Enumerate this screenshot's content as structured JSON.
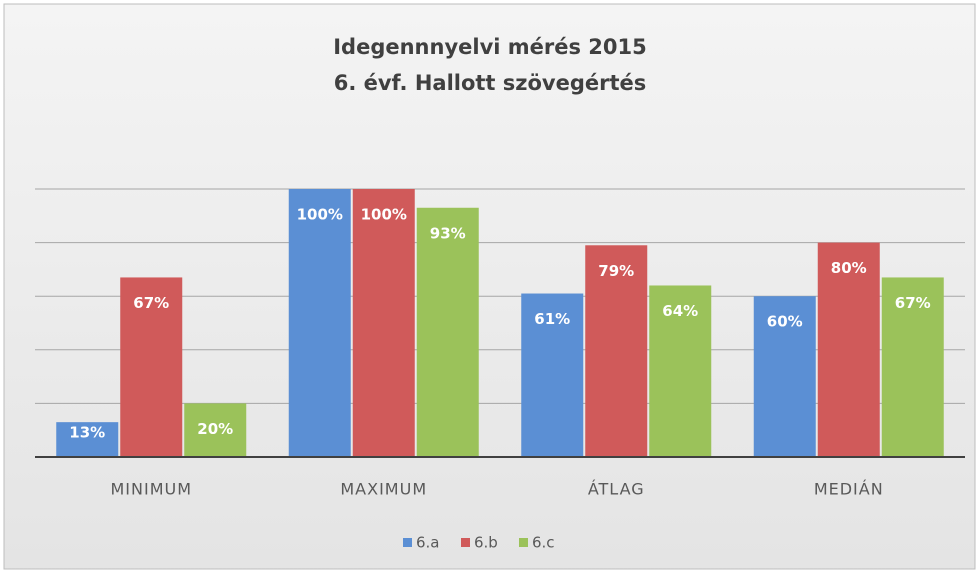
{
  "chart_data": {
    "type": "bar",
    "title": "Idegennnyelvi mérés 2015",
    "subtitle": "6. évf. Hallott szövegértés",
    "categories": [
      "MINIMUM",
      "MAXIMUM",
      "ÁTLAG",
      "MEDIÁN"
    ],
    "series": [
      {
        "name": "6.a",
        "color": "#5b8fd4",
        "values": [
          13,
          100,
          61,
          60
        ],
        "value_labels": [
          "13%",
          "100%",
          "61%",
          "60%"
        ]
      },
      {
        "name": "6.b",
        "color": "#d05a5a",
        "values": [
          67,
          100,
          79,
          80
        ],
        "value_labels": [
          "67%",
          "100%",
          "79%",
          "80%"
        ]
      },
      {
        "name": "6.c",
        "color": "#9bc25a",
        "values": [
          20,
          93,
          64,
          67
        ],
        "value_labels": [
          "20%",
          "93%",
          "64%",
          "67%"
        ]
      }
    ],
    "ylim": [
      0,
      100
    ],
    "yticks": [
      0,
      20,
      40,
      60,
      80,
      100
    ],
    "grid": true,
    "legend": "bottom"
  }
}
